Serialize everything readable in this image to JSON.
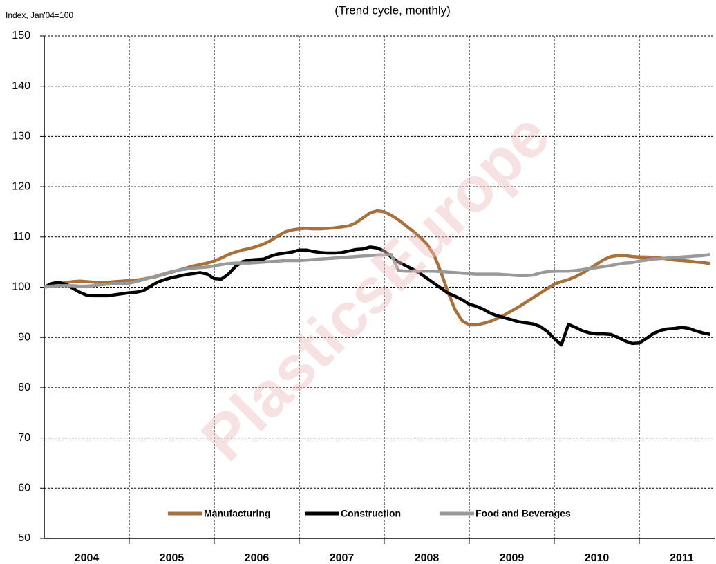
{
  "chart_data": {
    "type": "line",
    "title": "(Trend cycle, monthly)",
    "y_axis_label": "Index, Jan'04=100",
    "watermark": "PlasticsEurope",
    "categories": [
      null,
      null,
      null,
      null,
      null,
      null,
      "2004",
      null,
      null,
      null,
      null,
      null,
      null,
      null,
      null,
      null,
      null,
      null,
      "2005",
      null,
      null,
      null,
      null,
      null,
      null,
      null,
      null,
      null,
      null,
      null,
      "2006",
      null,
      null,
      null,
      null,
      null,
      null,
      null,
      null,
      null,
      null,
      null,
      "2007",
      null,
      null,
      null,
      null,
      null,
      null,
      null,
      null,
      null,
      null,
      null,
      "2008",
      null,
      null,
      null,
      null,
      null,
      null,
      null,
      null,
      null,
      null,
      null,
      "2009",
      null,
      null,
      null,
      null,
      null,
      null,
      null,
      null,
      null,
      null,
      null,
      "2010",
      null,
      null,
      null,
      null,
      null,
      null,
      null,
      null,
      null,
      null,
      null,
      "2011",
      null,
      null,
      null,
      null
    ],
    "series": [
      {
        "name": "Manufacturing",
        "color": "#a8703a",
        "values": [
          100,
          100.3,
          100.6,
          100.9,
          101.1,
          101.2,
          101.1,
          101.0,
          101.0,
          101.0,
          101.1,
          101.2,
          101.3,
          101.4,
          101.6,
          101.9,
          102.2,
          102.6,
          103.0,
          103.4,
          103.8,
          104.2,
          104.5,
          104.8,
          105.2,
          105.8,
          106.5,
          107.0,
          107.4,
          107.7,
          108.1,
          108.6,
          109.3,
          110.2,
          111.0,
          111.4,
          111.6,
          111.7,
          111.6,
          111.6,
          111.7,
          111.8,
          112.0,
          112.2,
          112.8,
          113.8,
          114.8,
          115.2,
          115.0,
          114.3,
          113.4,
          112.3,
          111.2,
          110.0,
          108.6,
          106.5,
          103.0,
          99.0,
          95.5,
          93.3,
          92.5,
          92.5,
          92.8,
          93.2,
          93.8,
          94.5,
          95.3,
          96.1,
          97.0,
          97.9,
          98.8,
          99.7,
          100.6,
          101.1,
          101.5,
          102.1,
          102.8,
          103.7,
          104.6,
          105.5,
          106.1,
          106.3,
          106.3,
          106.1,
          106.0,
          106.0,
          105.9,
          105.8,
          105.6,
          105.4,
          105.3,
          105.2,
          105.0,
          104.9,
          104.7
        ]
      },
      {
        "name": "Construction",
        "color": "#000000",
        "values": [
          100,
          100.7,
          101.0,
          100.6,
          99.8,
          99.0,
          98.4,
          98.3,
          98.3,
          98.3,
          98.5,
          98.7,
          98.9,
          99.0,
          99.3,
          100.2,
          101.0,
          101.5,
          101.9,
          102.2,
          102.5,
          102.7,
          102.9,
          102.6,
          101.7,
          101.6,
          102.6,
          104.1,
          105.1,
          105.4,
          105.5,
          105.6,
          106.2,
          106.6,
          106.8,
          107.0,
          107.4,
          107.4,
          107.1,
          106.9,
          106.8,
          106.8,
          106.9,
          107.2,
          107.5,
          107.6,
          108.0,
          107.8,
          107.2,
          106.0,
          105.0,
          104.3,
          103.6,
          102.8,
          101.8,
          100.8,
          99.8,
          98.8,
          98.2,
          97.5,
          96.6,
          96.2,
          95.6,
          94.8,
          94.3,
          93.9,
          93.5,
          93.1,
          92.9,
          92.7,
          92.2,
          91.2,
          89.8,
          88.5,
          92.6,
          92.0,
          91.3,
          90.9,
          90.7,
          90.7,
          90.6,
          90.0,
          89.3,
          88.8,
          88.9,
          89.8,
          90.8,
          91.4,
          91.7,
          91.8,
          92.0,
          91.8,
          91.3,
          90.9,
          90.6
        ]
      },
      {
        "name": "Food and Beverages",
        "color": "#999999",
        "values": [
          100,
          100.2,
          100.3,
          100.3,
          100.3,
          100.2,
          100.2,
          100.3,
          100.5,
          100.6,
          100.7,
          100.7,
          100.8,
          101.1,
          101.5,
          101.9,
          102.3,
          102.7,
          103.1,
          103.4,
          103.6,
          103.8,
          103.9,
          104.0,
          104.2,
          104.5,
          104.7,
          104.8,
          104.8,
          104.8,
          104.9,
          105.0,
          105.1,
          105.2,
          105.3,
          105.3,
          105.3,
          105.4,
          105.5,
          105.6,
          105.7,
          105.8,
          105.9,
          106.0,
          106.1,
          106.2,
          106.3,
          106.4,
          106.4,
          106.5,
          103.3,
          103.2,
          103.2,
          103.2,
          103.2,
          103.2,
          103.1,
          103.0,
          102.9,
          102.8,
          102.7,
          102.6,
          102.6,
          102.6,
          102.6,
          102.5,
          102.4,
          102.3,
          102.3,
          102.4,
          102.8,
          103.1,
          103.2,
          103.2,
          103.2,
          103.3,
          103.5,
          103.7,
          103.9,
          104.1,
          104.3,
          104.6,
          104.8,
          104.9,
          105.2,
          105.4,
          105.6,
          105.7,
          105.8,
          105.9,
          106.0,
          106.1,
          106.2,
          106.3,
          106.5
        ]
      }
    ],
    "ylim": [
      50,
      150
    ],
    "yticks": [
      50,
      60,
      70,
      80,
      90,
      100,
      110,
      120,
      130,
      140,
      150
    ],
    "grid": true,
    "legend": "bottom"
  }
}
